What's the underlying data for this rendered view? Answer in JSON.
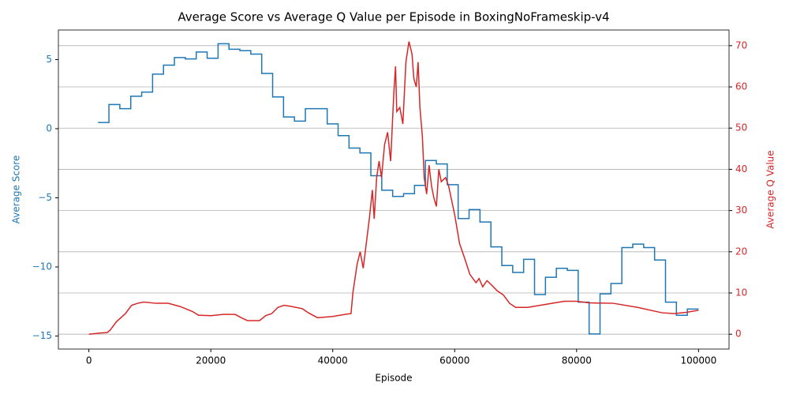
{
  "chart_data": {
    "type": "dual_axis_line",
    "title": "Average Score vs Average Q Value per Episode in BoxingNoFrameskip-v4",
    "xlabel": "Episode",
    "ylabel": "Average Score",
    "y2label": "Average Q Value",
    "xlim": [
      -5000,
      105000
    ],
    "xticks": [
      0,
      20000,
      40000,
      60000,
      80000,
      100000
    ],
    "ylim": [
      -15.94,
      7.14
    ],
    "yticks": [
      {
        "value": -15,
        "label": "−15"
      },
      {
        "value": -10,
        "label": "−10"
      },
      {
        "value": -5,
        "label": "−5"
      },
      0,
      5
    ],
    "y2lim": [
      -3.6,
      73.8
    ],
    "y2ticks": [
      0,
      10,
      20,
      30,
      40,
      50,
      60,
      70
    ],
    "grid": "y2",
    "series": [
      {
        "name": "Average Score",
        "color": "#1f77b4",
        "axis": "y",
        "drawstyle": "steps-post",
        "x": [
          1500,
          3290,
          5080,
          6870,
          8660,
          10450,
          12240,
          14030,
          15820,
          17610,
          19400,
          21190,
          22980,
          24770,
          26560,
          28350,
          30140,
          31930,
          33720,
          35510,
          37300,
          39090,
          40880,
          42670,
          44460,
          46250,
          48040,
          49830,
          51620,
          53410,
          55200,
          56990,
          58780,
          60570,
          62360,
          64150,
          65940,
          67730,
          69520,
          71310,
          73100,
          74890,
          76680,
          78470,
          80260,
          82050,
          83840,
          85630,
          87420,
          89210,
          91000,
          92790,
          94580,
          96370,
          98160,
          100000
        ],
        "values": [
          0.45,
          1.75,
          1.45,
          2.35,
          2.65,
          3.95,
          4.6,
          5.15,
          5.05,
          5.55,
          5.1,
          6.15,
          5.75,
          5.65,
          5.4,
          4.0,
          2.3,
          0.85,
          0.55,
          1.45,
          1.45,
          0.35,
          -0.5,
          -1.4,
          -1.75,
          -3.4,
          -4.45,
          -4.9,
          -4.7,
          -4.1,
          -2.3,
          -2.55,
          -4.05,
          -6.5,
          -5.85,
          -6.75,
          -8.55,
          -9.9,
          -10.4,
          -9.45,
          -12.0,
          -10.75,
          -10.1,
          -10.25,
          -12.55,
          -14.85,
          -11.95,
          -11.2,
          -8.6,
          -8.35,
          -8.6,
          -9.5,
          -12.55,
          -13.5,
          -13.05,
          -13.05
        ]
      },
      {
        "name": "Average Q Value",
        "color": "#d62728",
        "axis": "y2",
        "drawstyle": "default",
        "x": [
          0,
          2000,
          3000,
          3500,
          4500,
          6000,
          7000,
          8000,
          9000,
          11000,
          13000,
          15000,
          17000,
          18000,
          20000,
          22000,
          24000,
          25000,
          26000,
          28000,
          29000,
          30000,
          31000,
          32000,
          33000,
          35000,
          36000,
          37500,
          40000,
          42000,
          43000,
          43300,
          44000,
          44500,
          45000,
          45500,
          46000,
          46500,
          46800,
          47200,
          47600,
          48000,
          48500,
          49000,
          49500,
          50000,
          50300,
          50500,
          51000,
          51500,
          52000,
          52500,
          53000,
          53300,
          53700,
          54000,
          54300,
          54700,
          55000,
          55400,
          55800,
          56200,
          56600,
          57000,
          57400,
          57800,
          58500,
          59000,
          60000,
          60800,
          61500,
          62500,
          63500,
          64000,
          64600,
          65300,
          66000,
          67000,
          68000,
          69000,
          70000,
          72000,
          74000,
          78000,
          80000,
          82000,
          86000,
          90000,
          94000,
          96000,
          98000,
          100000
        ],
        "values": [
          0,
          0.3,
          0.4,
          1,
          3,
          5,
          7,
          7.5,
          7.8,
          7.5,
          7.5,
          6.7,
          5.5,
          4.6,
          4.5,
          4.8,
          4.8,
          4.0,
          3.3,
          3.3,
          4.5,
          5,
          6.5,
          7,
          6.8,
          6.2,
          5.2,
          4,
          4.3,
          4.8,
          5,
          10,
          17,
          20,
          16,
          22,
          28,
          35,
          28,
          38,
          42,
          38,
          46,
          49,
          42,
          58,
          65,
          54,
          55,
          51,
          66,
          71,
          68,
          62,
          60,
          66,
          55,
          48,
          38,
          34,
          41,
          36,
          33,
          31,
          40,
          37,
          38,
          36,
          29,
          22,
          19,
          14.5,
          12.5,
          13.5,
          11.5,
          13,
          12,
          10.5,
          9.5,
          7.5,
          6.5,
          6.5,
          7,
          8,
          8,
          7.6,
          7.5,
          6.5,
          5.2,
          5,
          5.3,
          5.8
        ]
      }
    ]
  }
}
